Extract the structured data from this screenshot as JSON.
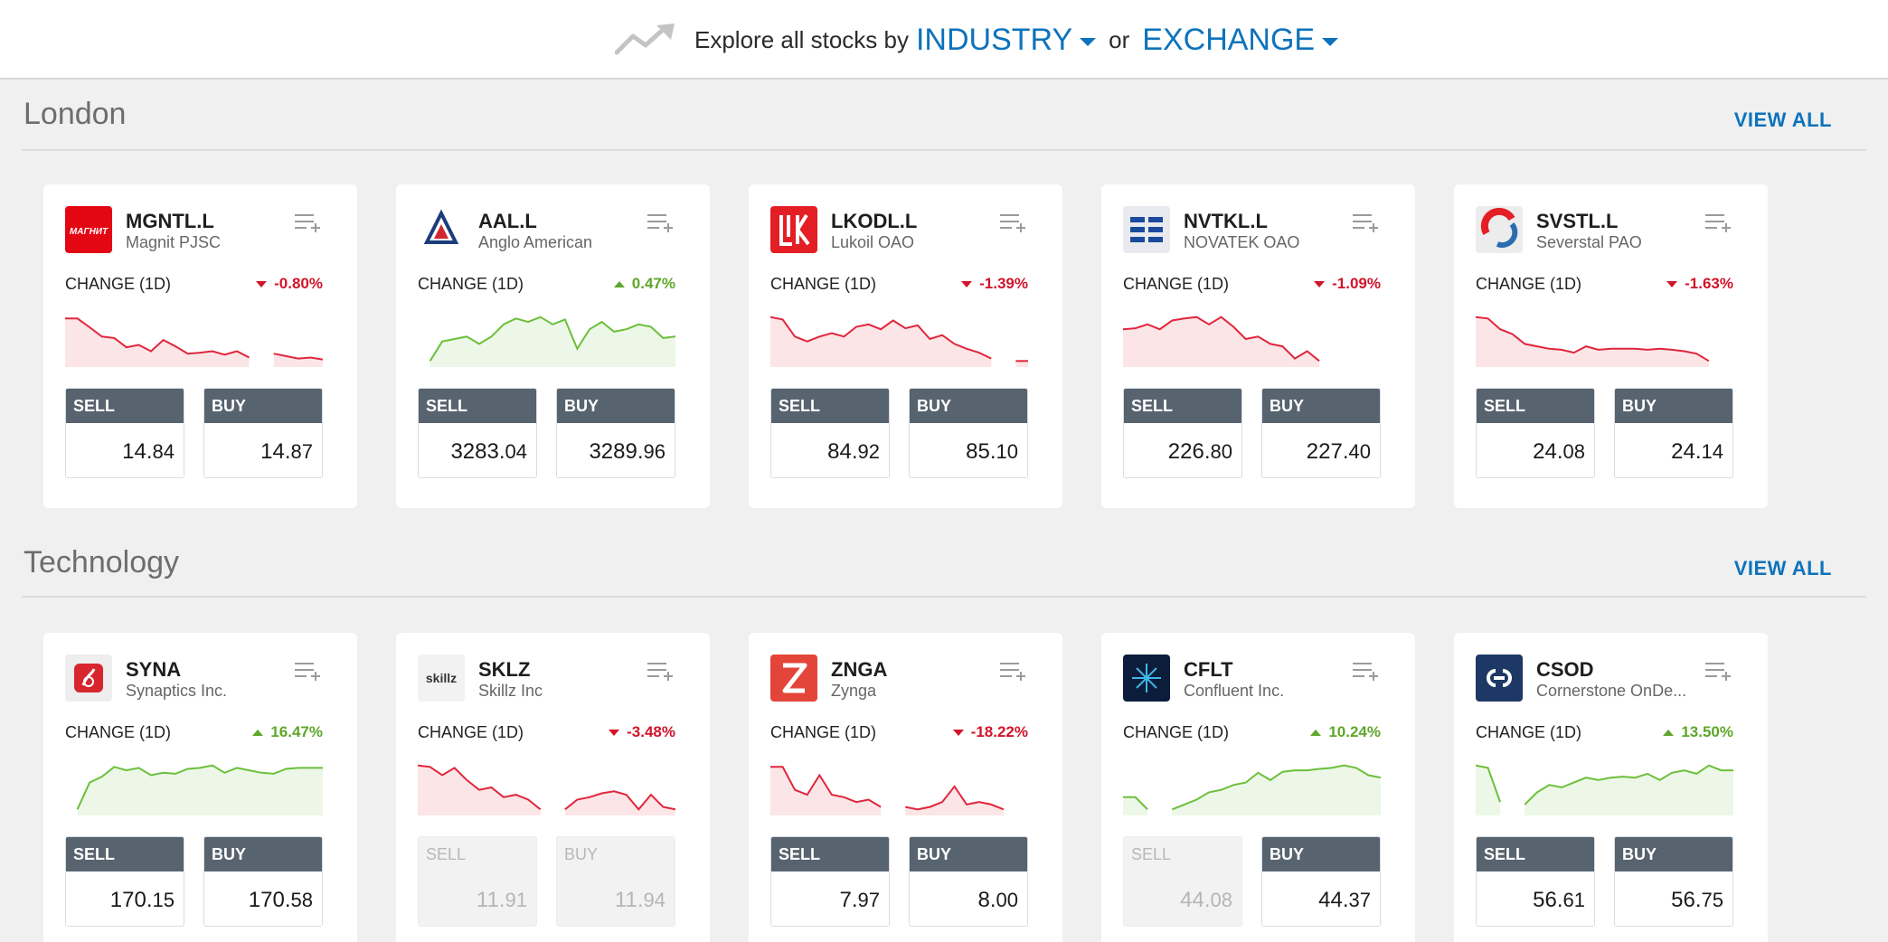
{
  "header": {
    "explore_text": "Explore all stocks by",
    "industry_label": "INDUSTRY",
    "or_text": "or",
    "exchange_label": "EXCHANGE"
  },
  "colors": {
    "accent": "#0d73bc",
    "up": "#5ea72a",
    "down": "#d1142a",
    "button_header": "#57636e"
  },
  "sections": [
    {
      "title": "London",
      "view_all": "VIEW ALL",
      "cards": [
        {
          "symbol": "MGNTL.L",
          "name": "Magnit PJSC",
          "logo_icon": "magnit-logo-icon",
          "change_label": "CHANGE (1D)",
          "change": "-0.80%",
          "direction": "down",
          "trend": [
            0.92,
            0.92,
            0.74,
            0.55,
            0.52,
            0.33,
            0.38,
            0.25,
            0.48,
            0.35,
            0.2,
            0.22,
            0.25,
            0.18,
            0.25,
            0.12,
            null,
            0.2,
            0.15,
            0.1,
            0.12,
            0.08
          ],
          "sell_main": "14.",
          "sell_dec": "84",
          "buy_main": "14.",
          "buy_dec": "87",
          "sell_label": "SELL",
          "buy_label": "BUY",
          "sell_disabled": false,
          "buy_disabled": false
        },
        {
          "symbol": "AAL.L",
          "name": "Anglo American",
          "logo_icon": "anglo-american-logo-icon",
          "change_label": "CHANGE (1D)",
          "change": "0.47%",
          "direction": "up",
          "trend": [
            null,
            0.05,
            0.45,
            0.5,
            0.55,
            0.4,
            0.55,
            0.8,
            0.92,
            0.85,
            0.95,
            0.8,
            0.9,
            0.3,
            0.7,
            0.85,
            0.65,
            0.7,
            0.8,
            0.75,
            0.52,
            0.55
          ],
          "sell_main": "3283.",
          "sell_dec": "04",
          "buy_main": "3289.",
          "buy_dec": "96",
          "sell_label": "SELL",
          "buy_label": "BUY",
          "sell_disabled": false,
          "buy_disabled": false
        },
        {
          "symbol": "LKODL.L",
          "name": "Lukoil OAO",
          "logo_icon": "lukoil-logo-icon",
          "change_label": "CHANGE (1D)",
          "change": "-1.39%",
          "direction": "down",
          "trend": [
            0.95,
            0.9,
            0.55,
            0.45,
            0.55,
            0.62,
            0.55,
            0.75,
            0.8,
            0.7,
            0.88,
            0.72,
            0.78,
            0.5,
            0.58,
            0.4,
            0.3,
            0.22,
            0.1,
            null,
            0.05,
            0.05
          ],
          "sell_main": "84.",
          "sell_dec": "92",
          "buy_main": "85.",
          "buy_dec": "10",
          "sell_label": "SELL",
          "buy_label": "BUY",
          "sell_disabled": false,
          "buy_disabled": false
        },
        {
          "symbol": "NVTKL.L",
          "name": "NOVATEK OAO",
          "logo_icon": "novatek-logo-icon",
          "change_label": "CHANGE (1D)",
          "change": "-1.09%",
          "direction": "down",
          "trend": [
            0.7,
            0.72,
            0.8,
            0.7,
            0.88,
            0.92,
            0.95,
            0.8,
            0.95,
            0.75,
            0.5,
            0.55,
            0.4,
            0.35,
            0.1,
            0.25,
            0.05,
            null,
            null,
            null,
            null,
            null
          ],
          "sell_main": "226.",
          "sell_dec": "80",
          "buy_main": "227.",
          "buy_dec": "40",
          "sell_label": "SELL",
          "buy_label": "BUY",
          "sell_disabled": false,
          "buy_disabled": false
        },
        {
          "symbol": "SVSTL.L",
          "name": "Severstal PAO",
          "logo_icon": "severstal-logo-icon",
          "change_label": "CHANGE (1D)",
          "change": "-1.63%",
          "direction": "down",
          "trend": [
            0.95,
            0.92,
            0.7,
            0.6,
            0.4,
            0.35,
            0.3,
            0.28,
            0.22,
            0.35,
            0.28,
            0.3,
            0.3,
            0.3,
            0.28,
            0.3,
            0.28,
            0.25,
            0.2,
            0.05,
            null,
            null
          ],
          "sell_main": "24.",
          "sell_dec": "08",
          "buy_main": "24.",
          "buy_dec": "14",
          "sell_label": "SELL",
          "buy_label": "BUY",
          "sell_disabled": false,
          "buy_disabled": false
        }
      ]
    },
    {
      "title": "Technology",
      "view_all": "VIEW ALL",
      "cards": [
        {
          "symbol": "SYNA",
          "name": "Synaptics Inc.",
          "logo_icon": "synaptics-logo-icon",
          "change_label": "CHANGE (1D)",
          "change": "16.47%",
          "direction": "up",
          "trend": [
            null,
            0.05,
            0.6,
            0.72,
            0.92,
            0.85,
            0.9,
            0.75,
            0.8,
            0.78,
            0.88,
            0.9,
            0.95,
            0.8,
            0.9,
            0.85,
            0.8,
            0.78,
            0.88,
            0.9,
            0.9,
            0.9
          ],
          "sell_main": "170.",
          "sell_dec": "15",
          "buy_main": "170.",
          "buy_dec": "58",
          "sell_label": "SELL",
          "buy_label": "BUY",
          "sell_disabled": false,
          "buy_disabled": false
        },
        {
          "symbol": "SKLZ",
          "name": "Skillz Inc",
          "logo_icon": "skillz-logo-icon",
          "change_label": "CHANGE (1D)",
          "change": "-3.48%",
          "direction": "down",
          "trend": [
            0.95,
            0.92,
            0.75,
            0.9,
            0.65,
            0.45,
            0.5,
            0.3,
            0.35,
            0.25,
            0.05,
            null,
            0.05,
            0.25,
            0.3,
            0.38,
            0.42,
            0.35,
            0.05,
            0.35,
            0.1,
            0.05
          ],
          "sell_main": "11.",
          "sell_dec": "91",
          "buy_main": "11.",
          "buy_dec": "94",
          "sell_label": "SELL",
          "buy_label": "BUY",
          "sell_disabled": true,
          "buy_disabled": true
        },
        {
          "symbol": "ZNGA",
          "name": "Zynga",
          "logo_icon": "zynga-logo-icon",
          "change_label": "CHANGE (1D)",
          "change": "-18.22%",
          "direction": "down",
          "trend": [
            0.92,
            0.92,
            0.45,
            0.35,
            0.75,
            0.35,
            0.3,
            0.2,
            0.25,
            0.1,
            null,
            0.1,
            0.05,
            0.1,
            0.2,
            0.52,
            0.15,
            0.2,
            0.15,
            0.05,
            null,
            null
          ],
          "sell_main": "7.",
          "sell_dec": "97",
          "buy_main": "8.",
          "buy_dec": "00",
          "sell_label": "SELL",
          "buy_label": "BUY",
          "sell_disabled": false,
          "buy_disabled": false
        },
        {
          "symbol": "CFLT",
          "name": "Confluent Inc.",
          "logo_icon": "confluent-logo-icon",
          "change_label": "CHANGE (1D)",
          "change": "10.24%",
          "direction": "up",
          "trend": [
            0.3,
            0.3,
            0.05,
            null,
            0.05,
            0.15,
            0.25,
            0.4,
            0.45,
            0.55,
            0.6,
            0.8,
            0.65,
            0.82,
            0.85,
            0.85,
            0.88,
            0.9,
            0.95,
            0.9,
            0.75,
            0.7
          ],
          "sell_main": "44.",
          "sell_dec": "08",
          "buy_main": "44.",
          "buy_dec": "37",
          "sell_label": "SELL",
          "buy_label": "BUY",
          "sell_disabled": true,
          "buy_disabled": false
        },
        {
          "symbol": "CSOD",
          "name": "Cornerstone OnDe...",
          "logo_icon": "cornerstone-logo-icon",
          "change_label": "CHANGE (1D)",
          "change": "13.50%",
          "direction": "up",
          "trend": [
            0.95,
            0.9,
            0.2,
            null,
            0.15,
            0.4,
            0.55,
            0.5,
            0.6,
            0.7,
            0.65,
            0.7,
            0.72,
            0.7,
            0.78,
            0.65,
            0.8,
            0.85,
            0.78,
            0.95,
            0.85,
            0.85
          ],
          "sell_main": "56.",
          "sell_dec": "61",
          "buy_main": "56.",
          "buy_dec": "75",
          "sell_label": "SELL",
          "buy_label": "BUY",
          "sell_disabled": false,
          "buy_disabled": false
        }
      ]
    }
  ]
}
